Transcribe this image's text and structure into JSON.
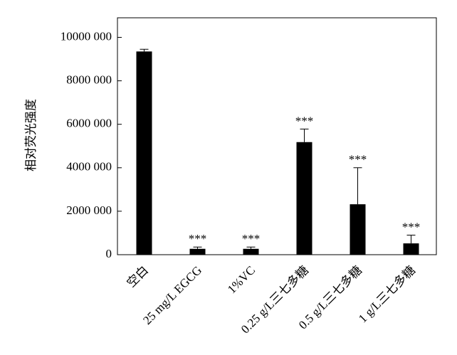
{
  "chart_data": {
    "type": "bar",
    "y_label": "相对荧光强度",
    "categories": [
      "空白",
      "25 mg/L EGCG",
      "1%VC",
      "0.25 g/L三七多糖",
      "0.5 g/L三七多糖",
      "1 g/L三七多糖"
    ],
    "values": [
      9350000,
      270000,
      270000,
      5180000,
      2320000,
      520000
    ],
    "errors": [
      100000,
      80000,
      80000,
      600000,
      1680000,
      380000
    ],
    "annotations": [
      null,
      "***",
      "***",
      "***",
      "***",
      "***"
    ],
    "color": "#000000",
    "ylim": [
      0,
      10900000
    ],
    "yticks": [
      {
        "value": 0,
        "label": "0"
      },
      {
        "value": 2000000,
        "label": "2000 000"
      },
      {
        "value": 4000000,
        "label": "4000 000"
      },
      {
        "value": 6000000,
        "label": "6000 000"
      },
      {
        "value": 8000000,
        "label": "8000 000"
      },
      {
        "value": 10000000,
        "label": "10000 000"
      }
    ],
    "grid": false
  }
}
